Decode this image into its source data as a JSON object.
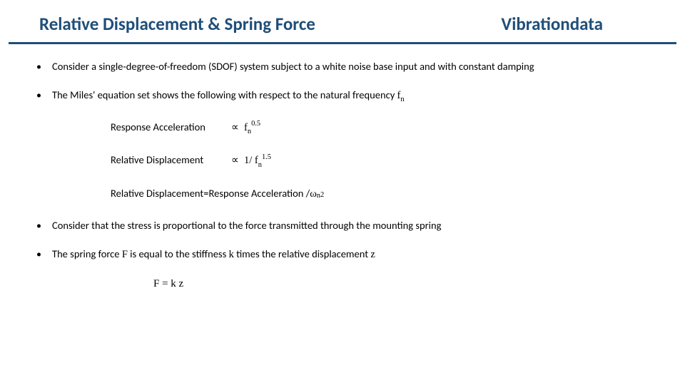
{
  "header": {
    "title": "Relative Displacement & Spring Force",
    "brand": "Vibrationdata"
  },
  "colors": {
    "heading": "#1f4e79",
    "divider": "#1f4e79",
    "text": "#000000",
    "background": "#ffffff"
  },
  "typography": {
    "title_fontsize": 25,
    "body_fontsize": 14.5,
    "title_weight": 700
  },
  "bullets": {
    "b1": "Consider a single-degree-of-freedom (SDOF) system subject to a white noise base input and with constant damping",
    "b2_pre": "The Miles' equation set shows the following with respect to the natural frequency ",
    "b2_var": "f",
    "b2_sub": "n",
    "b3": "Consider that the stress is proportional to the force transmitted through the mounting spring",
    "b4_pre": "The spring force ",
    "b4_F": "F",
    "b4_mid1": " is equal to the stiffness ",
    "b4_k": "k",
    "b4_mid2": " times the relative displacement ",
    "b4_z": "z"
  },
  "math": {
    "row1_label": "Response Acceleration",
    "row1_prop": "∝",
    "row1_base": "f",
    "row1_sub": "n",
    "row1_exp": "0.5",
    "row2_label": "Relative Displacement",
    "row2_prop": "∝",
    "row2_frac": "1/ f",
    "row2_sub": "n",
    "row2_exp": "1.5",
    "row3_lhs": "Relative Displacement ",
    "row3_eq": "= ",
    "row3_rhs": "Response Acceleration / ",
    "row3_omega": "ω",
    "row3_sub": "n",
    "row3_exp": "2"
  },
  "equation": {
    "text": "F = k z"
  }
}
